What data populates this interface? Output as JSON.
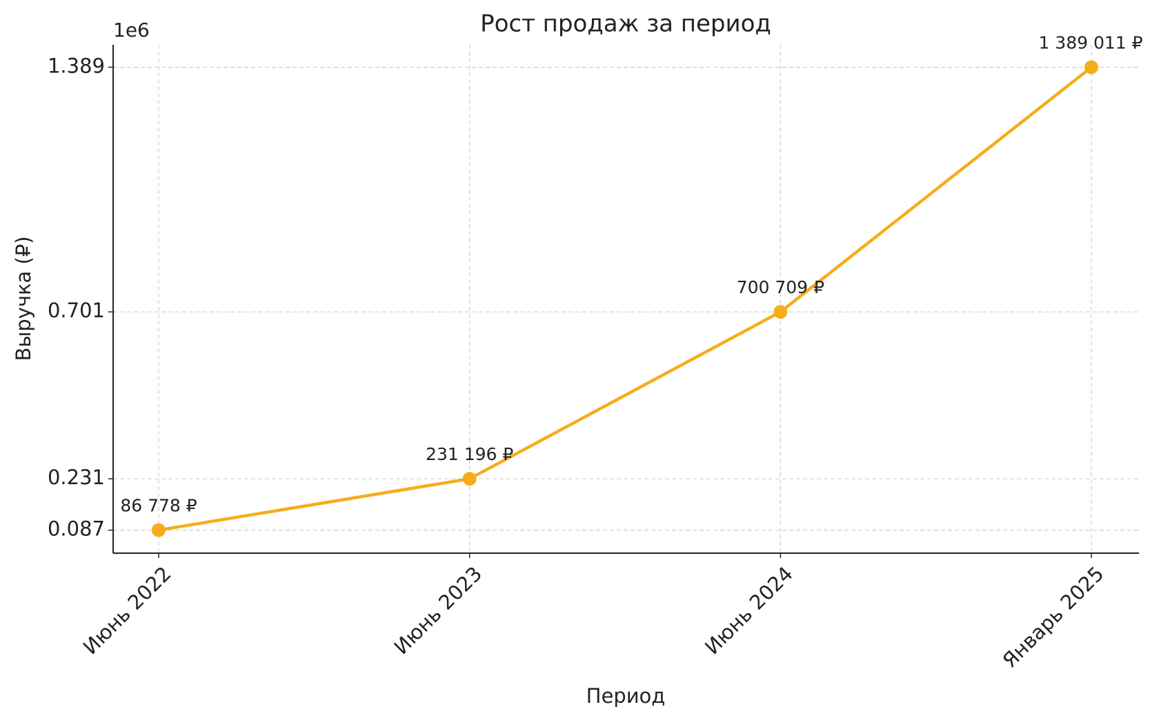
{
  "chart_data": {
    "type": "line",
    "title": "Рост продаж за период",
    "x_label": "Период",
    "y_label": "Выручка (₽)",
    "y_offset_label": "1e6",
    "categories": [
      "Июнь 2022",
      "Июнь 2023",
      "Июнь 2024",
      "Январь 2025"
    ],
    "values": [
      86778,
      231196,
      700709,
      1389011
    ],
    "value_labels": [
      "86 778 ₽",
      "231 196 ₽",
      "700 709 ₽",
      "1 389 011 ₽"
    ],
    "color": "#f5ad1b",
    "ylim": [
      22000,
      1452000
    ],
    "yticks": [
      {
        "value": 86778,
        "label": "0.087"
      },
      {
        "value": 231196,
        "label": "0.231"
      },
      {
        "value": 700709,
        "label": "0.701"
      },
      {
        "value": 1389011,
        "label": "1.389"
      }
    ],
    "grid": true
  }
}
